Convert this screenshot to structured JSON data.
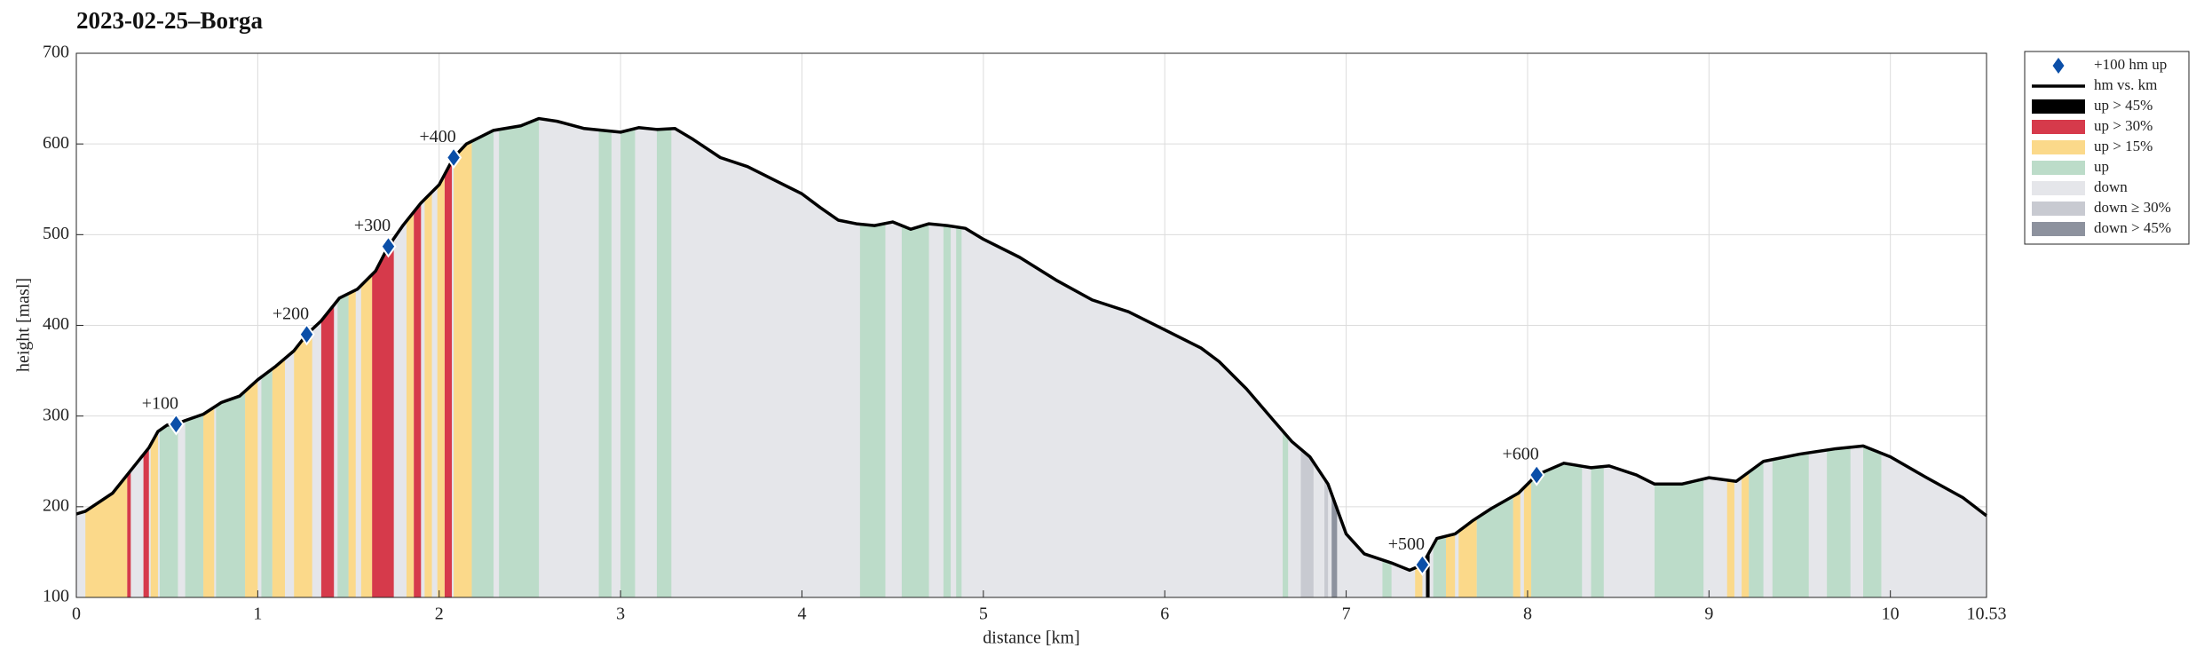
{
  "chart_data": {
    "type": "elevation-profile",
    "title": "2023-02-25–Borga",
    "x_label": "distance [km]",
    "y_label": "height [masl]",
    "xlim": [
      0,
      10.53
    ],
    "xticks": [
      0,
      1,
      2,
      3,
      4,
      5,
      6,
      7,
      8,
      9,
      10,
      10.53
    ],
    "ylim": [
      100,
      700
    ],
    "yticks": [
      100,
      200,
      300,
      400,
      500,
      600,
      700
    ],
    "grid": true,
    "legend": "outside-right",
    "markers": {
      "name": "+100 hm up",
      "color": "#0b4fa8",
      "x": [
        0.55,
        1.27,
        1.72,
        2.08,
        7.42,
        8.05
      ],
      "values": [
        291,
        390,
        487,
        585,
        136,
        235
      ],
      "labels": [
        "+100",
        "+200",
        "+300",
        "+400",
        "+500",
        "+600"
      ]
    },
    "profile": {
      "name": "hm vs. km",
      "color": "#000000",
      "x": [
        0,
        0.05,
        0.2,
        0.3,
        0.4,
        0.45,
        0.5,
        0.55,
        0.6,
        0.7,
        0.8,
        0.9,
        1.0,
        1.1,
        1.2,
        1.27,
        1.35,
        1.45,
        1.55,
        1.65,
        1.72,
        1.8,
        1.9,
        2.0,
        2.08,
        2.15,
        2.3,
        2.45,
        2.55,
        2.65,
        2.8,
        3.0,
        3.1,
        3.2,
        3.3,
        3.4,
        3.55,
        3.7,
        3.85,
        4.0,
        4.1,
        4.2,
        4.3,
        4.4,
        4.5,
        4.6,
        4.7,
        4.8,
        4.9,
        5.0,
        5.2,
        5.4,
        5.6,
        5.8,
        6.0,
        6.2,
        6.3,
        6.45,
        6.6,
        6.7,
        6.8,
        6.9,
        7.0,
        7.1,
        7.25,
        7.35,
        7.42,
        7.5,
        7.6,
        7.7,
        7.8,
        7.95,
        8.05,
        8.2,
        8.35,
        8.45,
        8.6,
        8.7,
        8.85,
        9.0,
        9.15,
        9.3,
        9.5,
        9.7,
        9.85,
        10.0,
        10.2,
        10.4,
        10.53
      ],
      "values": [
        192,
        195,
        215,
        240,
        265,
        283,
        290,
        291,
        295,
        302,
        315,
        322,
        340,
        355,
        372,
        390,
        405,
        430,
        440,
        460,
        487,
        510,
        535,
        555,
        585,
        600,
        615,
        620,
        628,
        625,
        617,
        613,
        618,
        616,
        617,
        605,
        585,
        575,
        560,
        545,
        530,
        516,
        512,
        510,
        514,
        506,
        512,
        510,
        507,
        495,
        475,
        450,
        428,
        415,
        395,
        375,
        360,
        330,
        295,
        272,
        255,
        225,
        170,
        148,
        138,
        130,
        136,
        165,
        170,
        185,
        198,
        215,
        235,
        248,
        243,
        245,
        235,
        225,
        225,
        232,
        228,
        250,
        258,
        264,
        267,
        255,
        232,
        210,
        190
      ]
    },
    "series": [
      {
        "name": "up > 45%",
        "color": "#000000",
        "segments": [
          [
            7.44,
            7.46
          ]
        ]
      },
      {
        "name": "up > 30%",
        "color": "#d63a4b",
        "segments": [
          [
            0.28,
            0.3
          ],
          [
            0.37,
            0.4
          ],
          [
            1.35,
            1.42
          ],
          [
            1.63,
            1.75
          ],
          [
            1.86,
            1.9
          ],
          [
            2.03,
            2.07
          ]
        ]
      },
      {
        "name": "up > 15%",
        "color": "#fbd98a",
        "segments": [
          [
            0.05,
            0.28
          ],
          [
            0.41,
            0.45
          ],
          [
            0.7,
            0.76
          ],
          [
            0.93,
            1.0
          ],
          [
            1.08,
            1.15
          ],
          [
            1.2,
            1.3
          ],
          [
            1.5,
            1.54
          ],
          [
            1.57,
            1.63
          ],
          [
            1.82,
            1.86
          ],
          [
            1.92,
            1.96
          ],
          [
            1.99,
            2.03
          ],
          [
            2.08,
            2.18
          ],
          [
            7.38,
            7.42
          ],
          [
            7.55,
            7.6
          ],
          [
            7.62,
            7.72
          ],
          [
            7.92,
            7.96
          ],
          [
            7.98,
            8.02
          ],
          [
            9.1,
            9.14
          ],
          [
            9.18,
            9.22
          ]
        ]
      },
      {
        "name": "up",
        "color": "#bcdcc9",
        "segments": [
          [
            0.46,
            0.56
          ],
          [
            0.6,
            0.7
          ],
          [
            0.77,
            0.93
          ],
          [
            1.02,
            1.08
          ],
          [
            1.44,
            1.5
          ],
          [
            2.18,
            2.3
          ],
          [
            2.33,
            2.55
          ],
          [
            2.88,
            2.95
          ],
          [
            3.0,
            3.08
          ],
          [
            3.2,
            3.28
          ],
          [
            4.32,
            4.46
          ],
          [
            4.55,
            4.7
          ],
          [
            4.78,
            4.82
          ],
          [
            4.85,
            4.88
          ],
          [
            6.65,
            6.68
          ],
          [
            7.2,
            7.25
          ],
          [
            7.48,
            7.55
          ],
          [
            7.72,
            7.92
          ],
          [
            8.02,
            8.3
          ],
          [
            8.35,
            8.42
          ],
          [
            8.7,
            8.97
          ],
          [
            9.22,
            9.3
          ],
          [
            9.35,
            9.55
          ],
          [
            9.65,
            9.78
          ],
          [
            9.85,
            9.95
          ]
        ]
      },
      {
        "name": "down",
        "color": "#e5e6ea"
      },
      {
        "name": "down ≥ 30%",
        "color": "#c8cad1",
        "segments": [
          [
            6.75,
            6.82
          ],
          [
            6.88,
            6.9
          ]
        ]
      },
      {
        "name": "down > 45%",
        "color": "#8d929e",
        "segments": [
          [
            6.92,
            6.95
          ]
        ]
      }
    ]
  }
}
